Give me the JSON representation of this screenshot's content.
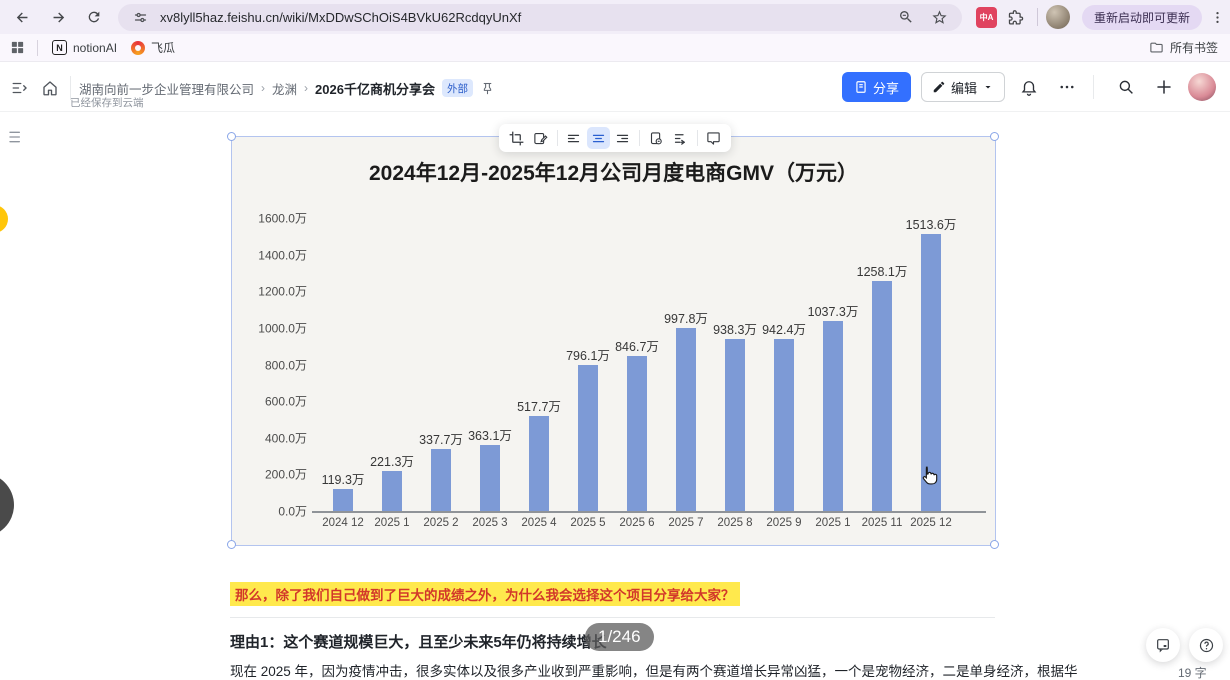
{
  "browser": {
    "url": "xv8lyll5haz.feishu.cn/wiki/MxDDwSChOiS4BVkU62RcdqyUnXf",
    "translate_ext_label": "中A",
    "update_button_label": "重新启动即可更新",
    "bookmarks": {
      "items": [
        "notionAI",
        "飞瓜"
      ],
      "notion_logo_letter": "N",
      "all_bookmarks_label": "所有书签"
    }
  },
  "header": {
    "breadcrumb": [
      "湖南向前一步企业管理有限公司",
      "龙渊",
      "2026千亿商机分享会"
    ],
    "breadcrumb_separator": "›",
    "external_badge": "外部",
    "saved_status": "已经保存到云端",
    "share_label": "分享",
    "edit_label": "编辑"
  },
  "content": {
    "highlight_text": "那么，除了我们自己做到了巨大的成绩之外，为什么我会选择这个项目分享给大家？",
    "heading": "理由1：这个赛道规模巨大，且至少未来5年仍将持续增长",
    "page_badge": "1/246",
    "paragraph": "现在 2025 年，因为疫情冲击，很多实体以及很多产业收到严重影响，但是有两个赛道增长异常凶猛，一个是宠物经济，二是单身经济，根据华",
    "word_count": "19 字",
    "question_mark": "?"
  },
  "colors": {
    "accent": "#3370ff",
    "bar": "#7d9ad6",
    "highlight_bg": "#ffe94d",
    "highlight_text": "#d2382a"
  },
  "chart_data": {
    "type": "bar",
    "title": "2024年12月-2025年12月公司月度电商GMV（万元）",
    "categories": [
      "2024 12",
      "2025 1",
      "2025 2",
      "2025 3",
      "2025 4",
      "2025 5",
      "2025 6",
      "2025 7",
      "2025 8",
      "2025 9",
      "2025 1",
      "2025 11",
      "2025 12"
    ],
    "values": [
      119.3,
      221.3,
      337.7,
      363.1,
      517.7,
      796.1,
      846.7,
      997.8,
      938.3,
      942.4,
      1037.3,
      1258.1,
      1513.6
    ],
    "data_labels": [
      "119.3万",
      "221.3万",
      "337.7万",
      "363.1万",
      "517.7万",
      "796.1万",
      "846.7万",
      "997.8万",
      "938.3万",
      "942.4万",
      "1037.3万",
      "1258.1万",
      "1513.6万"
    ],
    "yticks": [
      "0.0万",
      "200.0万",
      "400.0万",
      "600.0万",
      "800.0万",
      "1000.0万",
      "1200.0万",
      "1400.0万",
      "1600.0万"
    ],
    "ylim": [
      0,
      1600
    ],
    "xlabel": "",
    "ylabel": "",
    "grid": false,
    "legend": "none",
    "bar_color": "#7d9ad6"
  }
}
